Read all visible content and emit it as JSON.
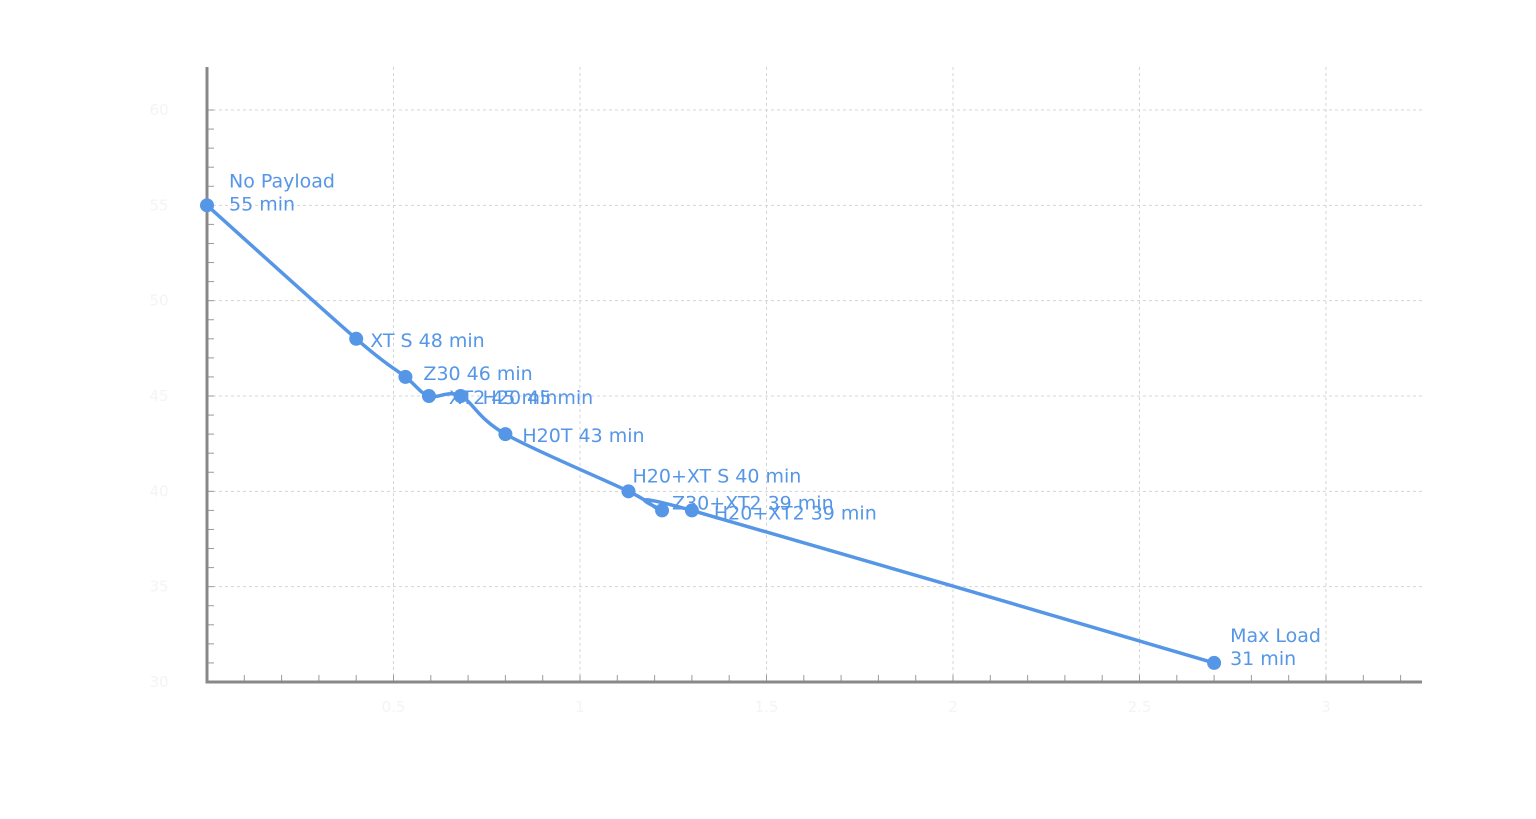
{
  "chart_data": {
    "type": "line",
    "title": "",
    "xlabel": "",
    "ylabel": "",
    "xlim": [
      0,
      3.25
    ],
    "ylim": [
      30,
      60
    ],
    "yticks": [
      30,
      35,
      40,
      45,
      50,
      55,
      60
    ],
    "xticks": [
      0.5,
      1.0,
      1.5,
      2.0,
      2.5,
      3.0
    ],
    "grid": true,
    "color": "#5596e6",
    "points": [
      {
        "x": 0.0,
        "y": 55,
        "label": [
          "No Payload",
          "55 min"
        ]
      },
      {
        "x": 0.4,
        "y": 48,
        "label": [
          "XT S 48 min"
        ]
      },
      {
        "x": 0.532,
        "y": 46,
        "label": [
          "Z30 46 min"
        ]
      },
      {
        "x": 0.595,
        "y": 45,
        "label": [
          "XT2 45 min"
        ]
      },
      {
        "x": 0.68,
        "y": 45,
        "label": [
          "H20 45 min"
        ]
      },
      {
        "x": 0.8,
        "y": 43,
        "label": [
          "H20T 43 min"
        ]
      },
      {
        "x": 1.13,
        "y": 40,
        "label": [
          "H20+XT S 40 min"
        ]
      },
      {
        "x": 1.22,
        "y": 39,
        "label": [
          "Z30+XT2 39 min"
        ]
      },
      {
        "x": 1.3,
        "y": 39,
        "label": [
          "H20+XT2 39 min"
        ]
      },
      {
        "x": 2.7,
        "y": 31,
        "label": [
          "Max Load",
          "31 min"
        ]
      }
    ]
  }
}
